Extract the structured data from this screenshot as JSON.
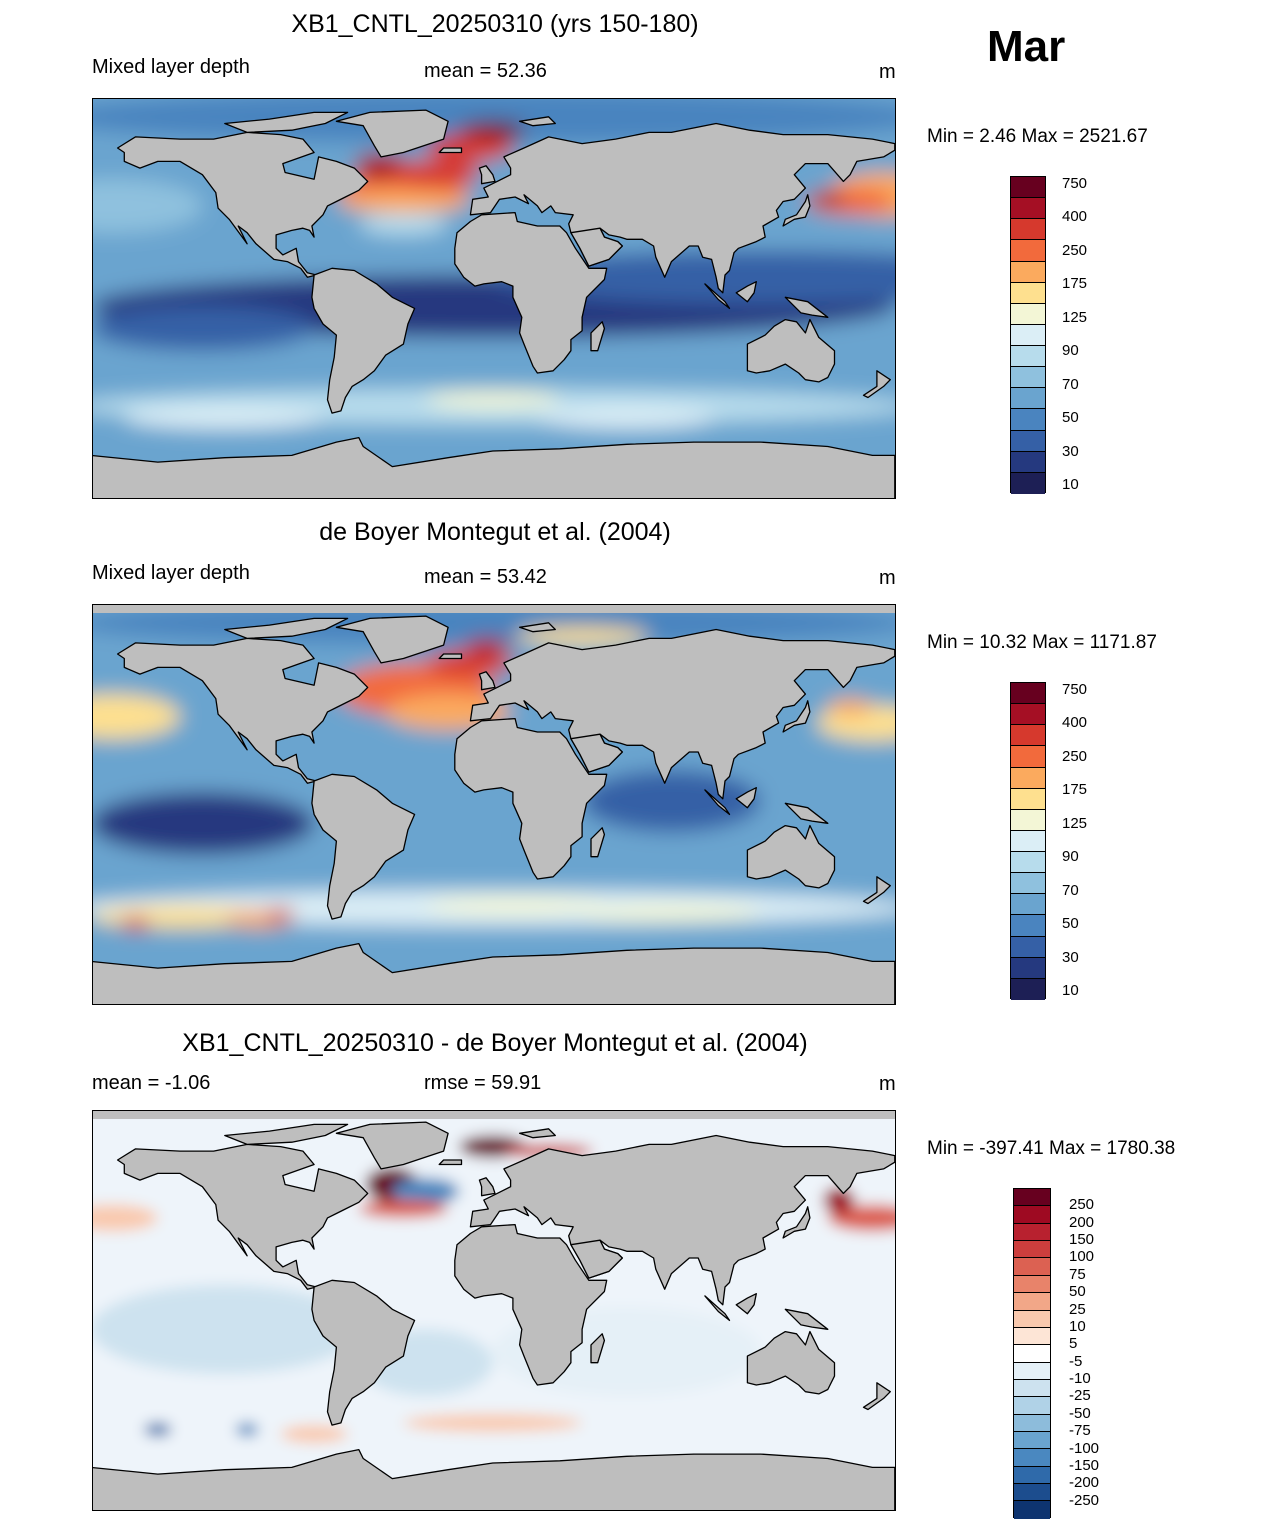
{
  "month": "Mar",
  "units": "m",
  "colors": {
    "land": "#bebebe",
    "coast": "#000000"
  },
  "panels": [
    {
      "id": "model",
      "title": "XB1_CNTL_20250310 (yrs 150-180)",
      "left_label": "Mixed layer depth",
      "center_label": "mean =  52.36",
      "units": "m",
      "minmax": "Min =   2.46 Max = 2521.67",
      "colorbar": {
        "labels": [
          "750",
          "400",
          "250",
          "175",
          "125",
          "90",
          "70",
          "50",
          "30",
          "10"
        ],
        "colors": [
          "#67001f",
          "#a50f24",
          "#d6392d",
          "#f26a3c",
          "#fbaa5e",
          "#fee08f",
          "#f3f6d6",
          "#dbeef6",
          "#b7dcec",
          "#8fc1de",
          "#6aa4cf",
          "#4a84bf",
          "#3560a6",
          "#25397f",
          "#1d1f55"
        ]
      }
    },
    {
      "id": "obs",
      "title": "de Boyer Montegut et al. (2004)",
      "left_label": "Mixed layer depth",
      "center_label": "mean =  53.42",
      "units": "m",
      "minmax": "Min =  10.32 Max = 1171.87",
      "colorbar": {
        "labels": [
          "750",
          "400",
          "250",
          "175",
          "125",
          "90",
          "70",
          "50",
          "30",
          "10"
        ],
        "colors": [
          "#67001f",
          "#a50f24",
          "#d6392d",
          "#f26a3c",
          "#fbaa5e",
          "#fee08f",
          "#f3f6d6",
          "#dbeef6",
          "#b7dcec",
          "#8fc1de",
          "#6aa4cf",
          "#4a84bf",
          "#3560a6",
          "#25397f",
          "#1d1f55"
        ]
      }
    },
    {
      "id": "diff",
      "title": "XB1_CNTL_20250310 - de Boyer Montegut et al. (2004)",
      "left_label": "mean =  -1.06",
      "center_label": "rmse =  59.91",
      "units": "m",
      "minmax": "Min = -397.41 Max = 1780.38",
      "colorbar": {
        "labels": [
          "250",
          "200",
          "150",
          "100",
          "75",
          "50",
          "25",
          "10",
          "5",
          "-5",
          "-10",
          "-25",
          "-50",
          "-75",
          "-100",
          "-150",
          "-200",
          "-250"
        ],
        "colors": [
          "#67001f",
          "#9e0a22",
          "#b8212f",
          "#cc3e3d",
          "#dc6152",
          "#e8836a",
          "#f2a788",
          "#f9c9ae",
          "#fde5d6",
          "#ffffff",
          "#e5f0f7",
          "#cde2ef",
          "#b0d2e7",
          "#8dbcdb",
          "#6aa4cf",
          "#4a88c0",
          "#2f6aaa",
          "#1c4d8e",
          "#0e3470"
        ]
      }
    }
  ]
}
